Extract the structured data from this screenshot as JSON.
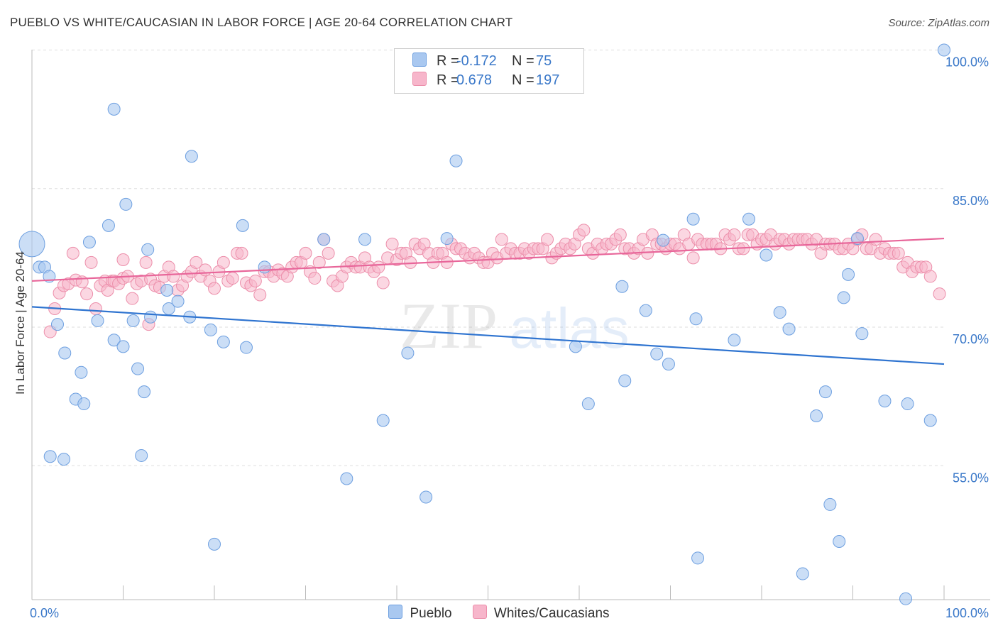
{
  "title": "PUEBLO VS WHITE/CAUCASIAN IN LABOR FORCE | AGE 20-64 CORRELATION CHART",
  "source": "Source: ZipAtlas.com",
  "watermark": {
    "zip": "ZIP",
    "atlas": "atlas"
  },
  "legend": {
    "items": [
      {
        "r_label": "R =",
        "r_value": "-0.172",
        "n_label": "N =",
        "n_value": "75"
      },
      {
        "r_label": "R =",
        "r_value": "0.678",
        "n_label": "N =",
        "n_value": "197"
      }
    ],
    "bottom": [
      "Pueblo",
      "Whites/Caucasians"
    ]
  },
  "colors": {
    "pueblo_fill": "#a9c8f0",
    "pueblo_stroke": "#6d9fe0",
    "pueblo_line": "#2f74d0",
    "white_fill": "#f7b6cb",
    "white_stroke": "#ec8eaa",
    "white_line": "#e8669a",
    "axis_label": "#3a78c9",
    "grid": "#dddddd"
  },
  "chart_data": {
    "type": "scatter",
    "xlabel": "",
    "ylabel": "In Labor Force | Age 20-64",
    "x_tick_labels": [
      "0.0%",
      "100.0%"
    ],
    "y_tick_labels": [
      "100.0%",
      "85.0%",
      "70.0%",
      "55.0%"
    ],
    "xlim": [
      0,
      100
    ],
    "ylim": [
      40.5,
      102.5
    ],
    "y_ticks": [
      100,
      85,
      70,
      55
    ],
    "grid": "horizontal dashed",
    "legend_position": "top-center",
    "series": [
      {
        "name": "Pueblo",
        "trend": {
          "x": [
            0,
            100
          ],
          "y": [
            72.2,
            66.0
          ]
        },
        "points": [
          [
            0.0,
            79.0
          ],
          [
            0.8,
            76.5
          ],
          [
            1.4,
            76.5
          ],
          [
            1.9,
            75.5
          ],
          [
            2.0,
            56.0
          ],
          [
            2.8,
            70.3
          ],
          [
            3.5,
            55.7
          ],
          [
            3.6,
            67.2
          ],
          [
            4.8,
            62.2
          ],
          [
            5.4,
            65.1
          ],
          [
            5.7,
            61.7
          ],
          [
            6.3,
            79.2
          ],
          [
            7.2,
            70.7
          ],
          [
            8.4,
            81.0
          ],
          [
            9.0,
            93.6
          ],
          [
            9.0,
            68.6
          ],
          [
            10.0,
            67.9
          ],
          [
            10.3,
            83.3
          ],
          [
            11.1,
            70.7
          ],
          [
            11.6,
            65.5
          ],
          [
            12.0,
            56.1
          ],
          [
            12.3,
            63.0
          ],
          [
            12.7,
            78.4
          ],
          [
            13.0,
            71.1
          ],
          [
            14.8,
            74.0
          ],
          [
            15.0,
            72.0
          ],
          [
            16.0,
            72.8
          ],
          [
            17.3,
            71.1
          ],
          [
            17.5,
            88.5
          ],
          [
            19.6,
            69.7
          ],
          [
            20.0,
            46.5
          ],
          [
            21.0,
            68.4
          ],
          [
            23.1,
            81.0
          ],
          [
            23.5,
            67.8
          ],
          [
            25.5,
            76.5
          ],
          [
            32.0,
            79.5
          ],
          [
            34.5,
            53.6
          ],
          [
            36.5,
            79.5
          ],
          [
            38.5,
            59.9
          ],
          [
            41.2,
            67.2
          ],
          [
            43.2,
            51.6
          ],
          [
            45.5,
            79.6
          ],
          [
            46.5,
            88.0
          ],
          [
            59.6,
            67.9
          ],
          [
            61.0,
            61.7
          ],
          [
            64.7,
            74.4
          ],
          [
            65.0,
            64.2
          ],
          [
            67.3,
            71.8
          ],
          [
            68.5,
            67.1
          ],
          [
            69.2,
            79.4
          ],
          [
            69.8,
            66.0
          ],
          [
            72.5,
            81.7
          ],
          [
            72.8,
            70.9
          ],
          [
            73.0,
            45.0
          ],
          [
            77.0,
            68.6
          ],
          [
            78.6,
            81.7
          ],
          [
            80.5,
            77.8
          ],
          [
            82.0,
            71.6
          ],
          [
            83.0,
            69.8
          ],
          [
            84.5,
            43.3
          ],
          [
            86.0,
            60.4
          ],
          [
            87.0,
            63.0
          ],
          [
            87.5,
            50.8
          ],
          [
            88.5,
            46.8
          ],
          [
            89.0,
            73.2
          ],
          [
            89.5,
            75.7
          ],
          [
            90.5,
            79.6
          ],
          [
            91.0,
            69.3
          ],
          [
            93.5,
            62.0
          ],
          [
            95.8,
            40.6
          ],
          [
            96.0,
            61.7
          ],
          [
            98.5,
            59.9
          ],
          [
            100.0,
            100.0
          ]
        ]
      },
      {
        "name": "Whites/Caucasians",
        "trend": {
          "x": [
            0,
            100
          ],
          "y": [
            75.0,
            79.6
          ]
        },
        "points": [
          [
            2.0,
            69.5
          ],
          [
            2.5,
            72.0
          ],
          [
            3.0,
            73.7
          ],
          [
            3.5,
            74.5
          ],
          [
            4.0,
            74.7
          ],
          [
            4.5,
            78.0
          ],
          [
            4.8,
            75.1
          ],
          [
            5.5,
            74.9
          ],
          [
            6.0,
            73.6
          ],
          [
            6.5,
            77.0
          ],
          [
            7.0,
            72.0
          ],
          [
            7.5,
            74.5
          ],
          [
            8.0,
            75.0
          ],
          [
            8.3,
            74.0
          ],
          [
            8.8,
            75.0
          ],
          [
            9.0,
            75.0
          ],
          [
            9.5,
            74.7
          ],
          [
            10.0,
            75.3
          ],
          [
            10.5,
            75.5
          ],
          [
            11.0,
            73.1
          ],
          [
            11.5,
            74.7
          ],
          [
            12.0,
            75.0
          ],
          [
            12.5,
            77.0
          ],
          [
            12.8,
            70.3
          ],
          [
            13.0,
            75.2
          ],
          [
            13.5,
            74.5
          ],
          [
            14.0,
            74.3
          ],
          [
            14.5,
            75.5
          ],
          [
            15.0,
            76.5
          ],
          [
            15.5,
            75.5
          ],
          [
            16.0,
            74.0
          ],
          [
            16.5,
            74.5
          ],
          [
            17.0,
            75.5
          ],
          [
            17.5,
            76.0
          ],
          [
            18.0,
            77.0
          ],
          [
            18.5,
            75.5
          ],
          [
            19.0,
            76.2
          ],
          [
            19.5,
            75.0
          ],
          [
            20.0,
            74.2
          ],
          [
            20.5,
            76.0
          ],
          [
            21.0,
            77.0
          ],
          [
            21.5,
            75.0
          ],
          [
            22.0,
            75.3
          ],
          [
            22.5,
            78.0
          ],
          [
            23.0,
            78.0
          ],
          [
            23.5,
            74.8
          ],
          [
            24.0,
            74.5
          ],
          [
            24.5,
            75.0
          ],
          [
            25.0,
            73.5
          ],
          [
            25.5,
            76.0
          ],
          [
            26.0,
            76.0
          ],
          [
            26.5,
            75.5
          ],
          [
            27.0,
            76.2
          ],
          [
            27.5,
            75.8
          ],
          [
            28.0,
            75.5
          ],
          [
            28.5,
            76.5
          ],
          [
            29.0,
            77.0
          ],
          [
            29.5,
            77.0
          ],
          [
            30.0,
            78.0
          ],
          [
            30.5,
            76.0
          ],
          [
            31.0,
            75.3
          ],
          [
            31.5,
            77.0
          ],
          [
            32.0,
            79.5
          ],
          [
            32.5,
            78.0
          ],
          [
            33.0,
            75.0
          ],
          [
            33.5,
            74.5
          ],
          [
            34.0,
            75.5
          ],
          [
            34.5,
            76.5
          ],
          [
            35.0,
            77.0
          ],
          [
            35.5,
            76.5
          ],
          [
            36.0,
            76.5
          ],
          [
            36.5,
            77.5
          ],
          [
            37.0,
            76.5
          ],
          [
            37.5,
            76.0
          ],
          [
            38.0,
            76.5
          ],
          [
            38.5,
            74.8
          ],
          [
            39.0,
            77.5
          ],
          [
            39.5,
            79.0
          ],
          [
            40.0,
            77.3
          ],
          [
            40.5,
            78.0
          ],
          [
            41.0,
            78.0
          ],
          [
            41.5,
            77.0
          ],
          [
            42.0,
            79.0
          ],
          [
            42.5,
            78.5
          ],
          [
            43.0,
            79.0
          ],
          [
            43.5,
            78.0
          ],
          [
            44.0,
            77.0
          ],
          [
            44.5,
            78.0
          ],
          [
            45.0,
            78.0
          ],
          [
            45.5,
            77.0
          ],
          [
            46.0,
            79.0
          ],
          [
            46.5,
            78.5
          ],
          [
            47.0,
            78.5
          ],
          [
            47.5,
            78.0
          ],
          [
            48.0,
            77.5
          ],
          [
            48.5,
            78.0
          ],
          [
            49.0,
            77.5
          ],
          [
            49.5,
            77.0
          ],
          [
            50.0,
            77.0
          ],
          [
            50.5,
            78.0
          ],
          [
            51.0,
            77.5
          ],
          [
            51.5,
            79.5
          ],
          [
            52.0,
            78.0
          ],
          [
            52.5,
            78.5
          ],
          [
            53.0,
            78.0
          ],
          [
            53.5,
            78.0
          ],
          [
            54.0,
            78.5
          ],
          [
            54.5,
            78.0
          ],
          [
            55.0,
            78.5
          ],
          [
            55.5,
            78.5
          ],
          [
            56.0,
            78.5
          ],
          [
            56.5,
            79.5
          ],
          [
            57.0,
            77.5
          ],
          [
            57.5,
            78.0
          ],
          [
            58.0,
            78.5
          ],
          [
            58.5,
            79.0
          ],
          [
            59.0,
            78.5
          ],
          [
            59.5,
            79.0
          ],
          [
            60.0,
            80.0
          ],
          [
            60.5,
            80.5
          ],
          [
            61.0,
            78.5
          ],
          [
            61.5,
            78.0
          ],
          [
            62.0,
            79.0
          ],
          [
            62.5,
            78.5
          ],
          [
            63.0,
            79.0
          ],
          [
            63.5,
            79.0
          ],
          [
            64.0,
            79.5
          ],
          [
            64.5,
            80.0
          ],
          [
            65.0,
            78.5
          ],
          [
            65.5,
            78.5
          ],
          [
            66.0,
            78.0
          ],
          [
            66.5,
            78.5
          ],
          [
            67.0,
            79.5
          ],
          [
            67.5,
            78.0
          ],
          [
            68.0,
            80.0
          ],
          [
            68.5,
            79.0
          ],
          [
            69.0,
            79.0
          ],
          [
            69.5,
            78.5
          ],
          [
            70.0,
            79.0
          ],
          [
            70.5,
            79.0
          ],
          [
            71.0,
            78.5
          ],
          [
            71.5,
            80.0
          ],
          [
            72.0,
            79.0
          ],
          [
            72.5,
            77.5
          ],
          [
            73.0,
            79.5
          ],
          [
            73.5,
            79.0
          ],
          [
            74.0,
            79.0
          ],
          [
            74.5,
            79.0
          ],
          [
            75.0,
            79.0
          ],
          [
            75.5,
            78.5
          ],
          [
            76.0,
            80.0
          ],
          [
            76.5,
            79.5
          ],
          [
            77.0,
            80.0
          ],
          [
            77.5,
            78.5
          ],
          [
            78.0,
            78.5
          ],
          [
            78.5,
            80.0
          ],
          [
            79.0,
            80.0
          ],
          [
            79.5,
            79.0
          ],
          [
            80.0,
            79.5
          ],
          [
            80.5,
            79.5
          ],
          [
            81.0,
            80.0
          ],
          [
            81.5,
            79.0
          ],
          [
            82.0,
            79.5
          ],
          [
            82.5,
            79.5
          ],
          [
            83.0,
            79.0
          ],
          [
            83.5,
            79.5
          ],
          [
            84.0,
            79.5
          ],
          [
            84.5,
            79.5
          ],
          [
            85.0,
            79.5
          ],
          [
            85.5,
            79.0
          ],
          [
            86.0,
            79.5
          ],
          [
            86.5,
            78.0
          ],
          [
            87.0,
            79.0
          ],
          [
            87.5,
            79.0
          ],
          [
            88.0,
            79.0
          ],
          [
            88.5,
            78.5
          ],
          [
            89.0,
            78.5
          ],
          [
            89.5,
            79.0
          ],
          [
            90.0,
            78.5
          ],
          [
            90.5,
            79.5
          ],
          [
            91.0,
            80.0
          ],
          [
            91.5,
            78.5
          ],
          [
            92.0,
            78.5
          ],
          [
            92.5,
            79.5
          ],
          [
            93.0,
            78.0
          ],
          [
            93.5,
            78.5
          ],
          [
            94.0,
            78.0
          ],
          [
            94.5,
            78.0
          ],
          [
            95.0,
            78.0
          ],
          [
            95.5,
            76.5
          ],
          [
            96.0,
            77.0
          ],
          [
            96.5,
            76.0
          ],
          [
            97.0,
            76.5
          ],
          [
            97.5,
            76.5
          ],
          [
            98.0,
            76.5
          ],
          [
            98.5,
            75.5
          ],
          [
            99.5,
            73.6
          ],
          [
            10.0,
            77.3
          ]
        ]
      }
    ]
  }
}
